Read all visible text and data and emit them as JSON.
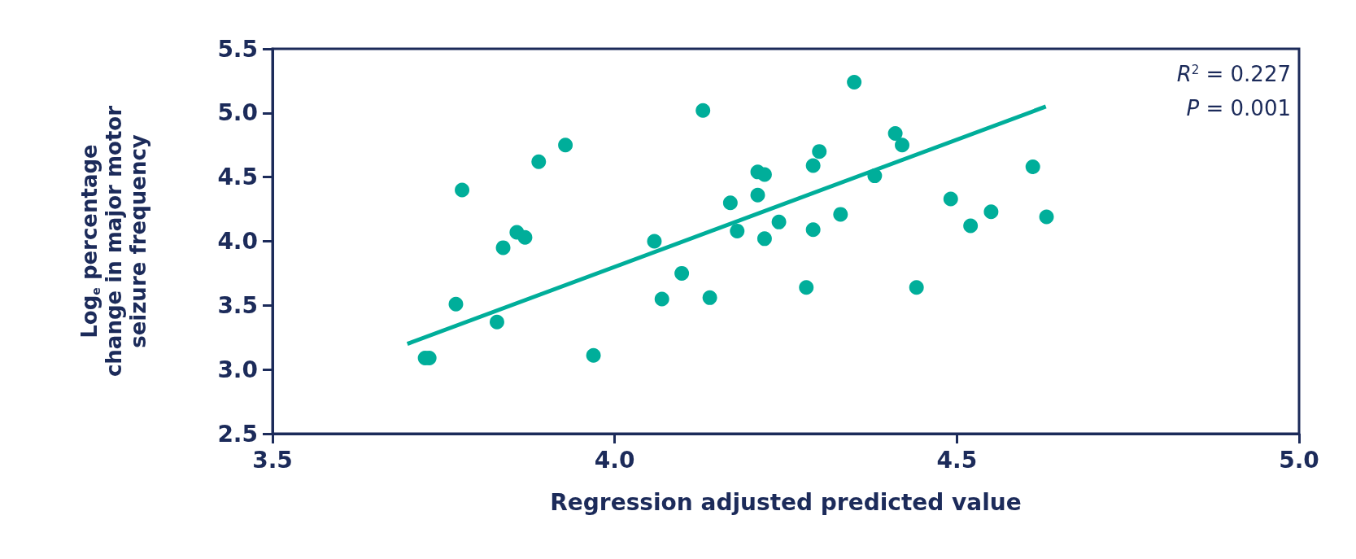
{
  "chart_data": {
    "type": "scatter",
    "xlabel": "Regression adjusted predicted value",
    "ylabel": "Log$_{e}$ percentage\nchange in major motor\nseizure frequency",
    "xlim": [
      3.5,
      5.0
    ],
    "xticks": [
      3.5,
      {
        "value": 4,
        "label": "4.0"
      },
      4.5,
      {
        "value": 5,
        "label": "5.0"
      }
    ],
    "ylim": [
      2.5,
      5.5
    ],
    "yticks": [
      2.5,
      {
        "value": 3,
        "label": "3.0"
      },
      3.5,
      {
        "value": 4,
        "label": "4.0"
      },
      4.5,
      {
        "value": 5,
        "label": "5.0"
      },
      5.5
    ],
    "grid": false,
    "marker": "circle",
    "annotations": [
      "R$^{2}$ = 0.227",
      "P = 0.001"
    ],
    "series": [
      {
        "color": "#00ae9a",
        "x": [
          3.723,
          3.729,
          3.768,
          3.777,
          3.828,
          3.837,
          3.857,
          3.869,
          3.889,
          3.928,
          3.969,
          4.058,
          4.069,
          4.098,
          4.129,
          4.139,
          4.169,
          4.179,
          4.209,
          4.219,
          4.209,
          4.219,
          4.24,
          4.28,
          4.29,
          4.299,
          4.29,
          4.33,
          4.35,
          4.38,
          4.41,
          4.42,
          4.441,
          4.491,
          4.52,
          4.55,
          4.611,
          4.631
        ],
        "values": [
          3.09,
          3.09,
          3.51,
          4.4,
          3.37,
          3.95,
          4.07,
          4.03,
          4.62,
          4.75,
          3.11,
          4.0,
          3.55,
          3.75,
          5.02,
          3.56,
          4.3,
          4.08,
          4.54,
          4.52,
          4.36,
          4.02,
          4.15,
          3.64,
          4.59,
          4.7,
          4.09,
          4.21,
          5.24,
          4.51,
          4.84,
          4.75,
          3.64,
          4.33,
          4.12,
          4.23,
          4.58,
          4.19
        ]
      },
      {
        "type": "line",
        "color": "#00ae9a",
        "x": [
          3.697,
          4.63
        ],
        "values": [
          3.2,
          5.05
        ],
        "marker": "none",
        "line_style": "solid"
      }
    ]
  }
}
